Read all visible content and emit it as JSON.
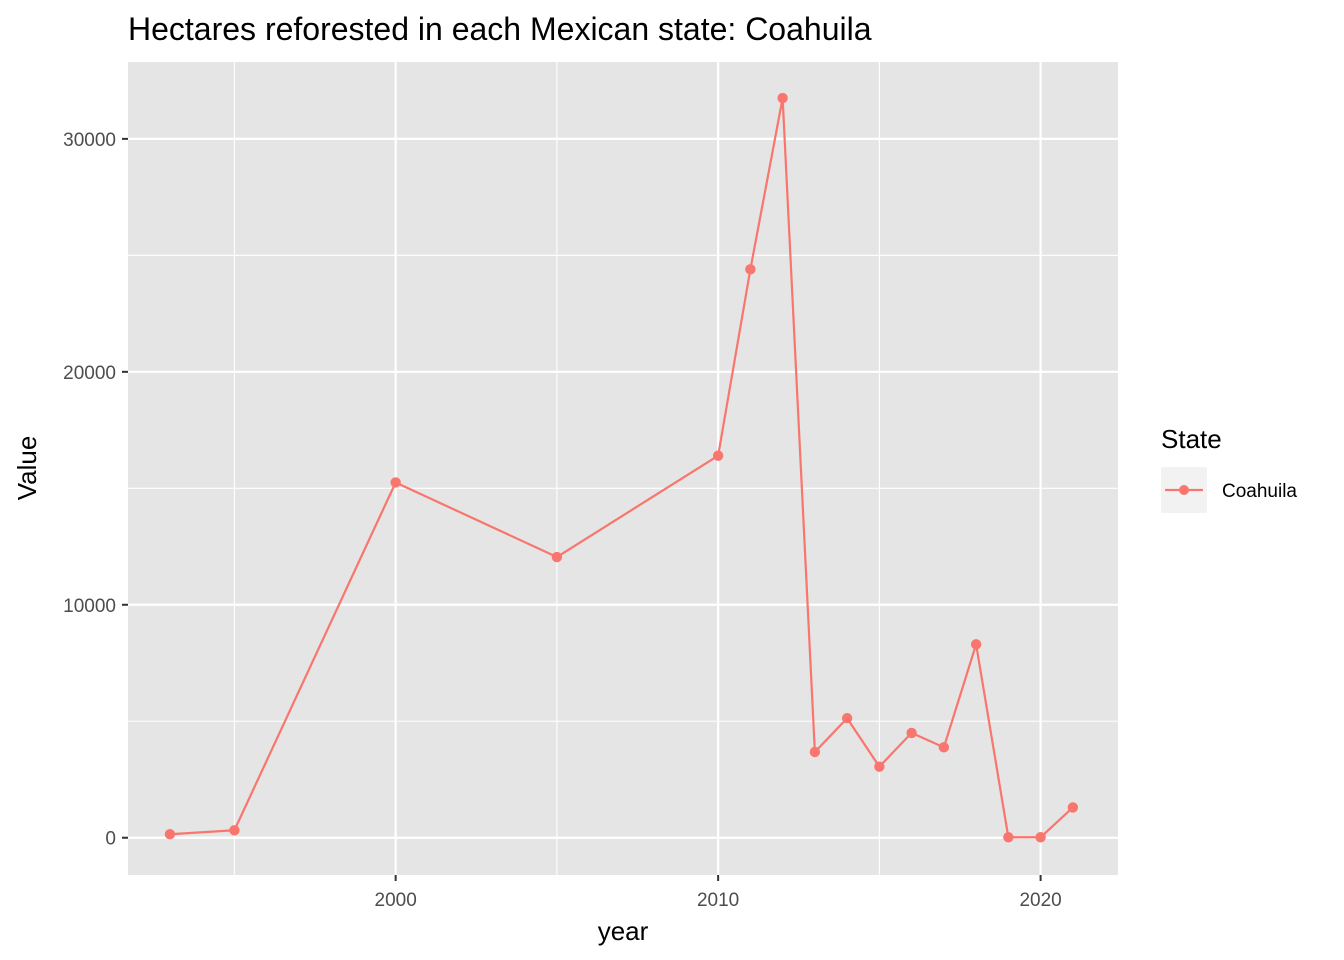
{
  "chart_data": {
    "type": "line",
    "title": "Hectares reforested in each Mexican state: Coahuila",
    "xlabel": "year",
    "ylabel": "Value",
    "xlim": [
      1991.7,
      2022.4
    ],
    "ylim": [
      -1600,
      33300
    ],
    "x_ticks": [
      2000,
      2010,
      2020
    ],
    "x_minor": [
      1995,
      2005,
      2015
    ],
    "y_ticks": [
      0,
      10000,
      20000,
      30000
    ],
    "y_minor": [
      5000,
      15000,
      25000
    ],
    "grid": true,
    "legend": {
      "title": "State",
      "position": "right"
    },
    "series": [
      {
        "name": "Coahuila",
        "color": "#f8766d",
        "x": [
          1993,
          1995,
          2000,
          2005,
          2010,
          2011,
          2012,
          2013,
          2014,
          2015,
          2016,
          2017,
          2018,
          2019,
          2020,
          2021
        ],
        "values": [
          150,
          320,
          15250,
          12050,
          16400,
          24400,
          31750,
          3680,
          5130,
          3050,
          4500,
          3880,
          8300,
          20,
          20,
          1300
        ]
      }
    ],
    "colors": {
      "panel_background": "#e5e5e5",
      "grid_line": "#ffffff",
      "legend_key_background": "#f2f2f2"
    }
  }
}
